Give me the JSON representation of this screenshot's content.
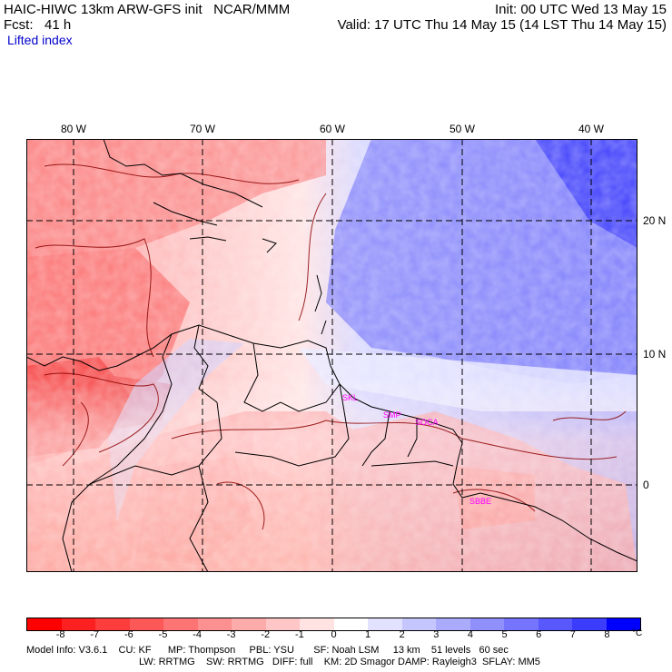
{
  "header": {
    "left_line1": "HAIC-HIWC 13km ARW-GFS init   NCAR/MMM",
    "left_line2": "Fcst:   41 h",
    "right_line1": "Init: 00 UTC Wed 13 May 15",
    "right_line2": "Valid: 17 UTC Thu 14 May 15 (14 LST Thu 14 May 15)",
    "field": "Lifted index"
  },
  "map": {
    "lon_labels": [
      "80 W",
      "70 W",
      "60 W",
      "50 W",
      "40 W"
    ],
    "lat_labels": [
      "20 N",
      "10 N",
      "0"
    ],
    "cities": [
      "SKL",
      "SMP",
      "SOCA",
      "SBBE"
    ]
  },
  "colorbar": {
    "ticks": [
      "-8",
      "-7",
      "-6",
      "-5",
      "-4",
      "-3",
      "-2",
      "-1",
      "0",
      "1",
      "2",
      "3",
      "4",
      "5",
      "6",
      "7",
      "8"
    ],
    "unit": "°C",
    "colors": [
      "#ff0000",
      "#fd2020",
      "#fd3c3c",
      "#fd5858",
      "#fd7474",
      "#fd9090",
      "#feabab",
      "#fec6c6",
      "#ffe2e2",
      "#ffffff",
      "#e2e2ff",
      "#c6c6fe",
      "#ababfe",
      "#9090fd",
      "#7474fd",
      "#5858fd",
      "#3c3cfd",
      "#0000ff"
    ]
  },
  "footer": {
    "line1": "Model Info: V3.6.1    CU: KF      MP: Thompson     PBL: YSU       SF: Noah LSM     13 km    51 levels   60 sec",
    "line2": "LW: RRTMG    SW: RRTMG   DIFF: full    KM: 2D Smagor DAMP: Rayleigh3  SFLAY: MM5"
  }
}
